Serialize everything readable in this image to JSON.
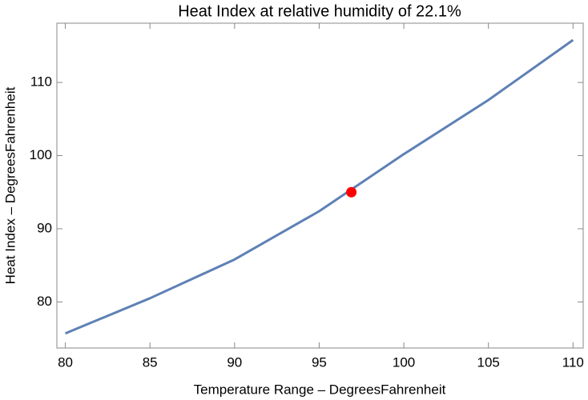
{
  "chart_data": {
    "type": "line",
    "title": "Heat Index at relative humidity of 22.1%",
    "x_label": "Temperature Range – DegreesFahrenheit",
    "y_label": "Heat Index – DegreesFahrenheit",
    "x": [
      80,
      85,
      90,
      95,
      100,
      105,
      110
    ],
    "series": [
      {
        "color": "#5e81b5",
        "values": [
          75.7,
          80.5,
          85.8,
          92.4,
          100.2,
          107.6,
          115.8
        ]
      }
    ],
    "highlight": {
      "x": 96.9,
      "y": 95.0,
      "color": "#ff0000"
    },
    "xlim": [
      79.5,
      110.6
    ],
    "ylim": [
      73.7,
      118.1
    ],
    "xticks": [
      80,
      85,
      90,
      95,
      100,
      105,
      110
    ],
    "yticks": [
      80,
      90,
      100,
      110
    ]
  }
}
